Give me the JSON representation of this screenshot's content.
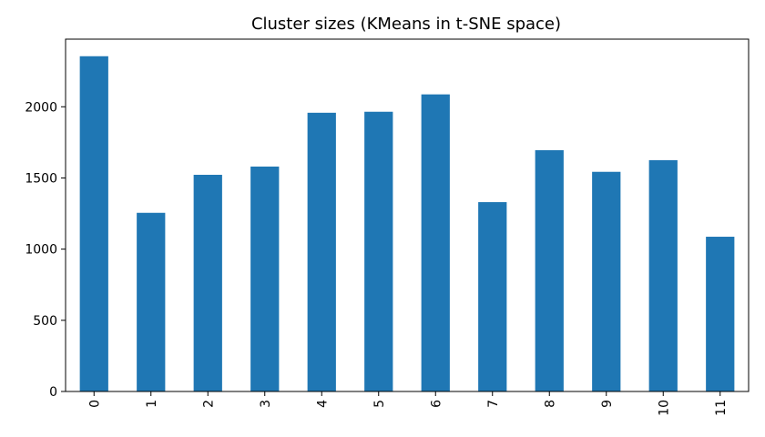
{
  "chart_data": {
    "type": "bar",
    "title": "Cluster sizes (KMeans in t-SNE space)",
    "xlabel": "",
    "ylabel": "",
    "categories": [
      "0",
      "1",
      "2",
      "3",
      "4",
      "5",
      "6",
      "7",
      "8",
      "9",
      "10",
      "11"
    ],
    "values": [
      2355,
      1255,
      1522,
      1580,
      1958,
      1965,
      2087,
      1330,
      1695,
      1543,
      1625,
      1087
    ],
    "ylim": [
      0,
      2475
    ],
    "yticks": [
      0,
      500,
      1000,
      1500,
      2000
    ],
    "ytick_labels": [
      "0",
      "500",
      "1000",
      "1500",
      "2000"
    ],
    "grid": false,
    "legend": "none",
    "bar_color": "#1f77b4",
    "x_tick_rotation": "vertical"
  }
}
